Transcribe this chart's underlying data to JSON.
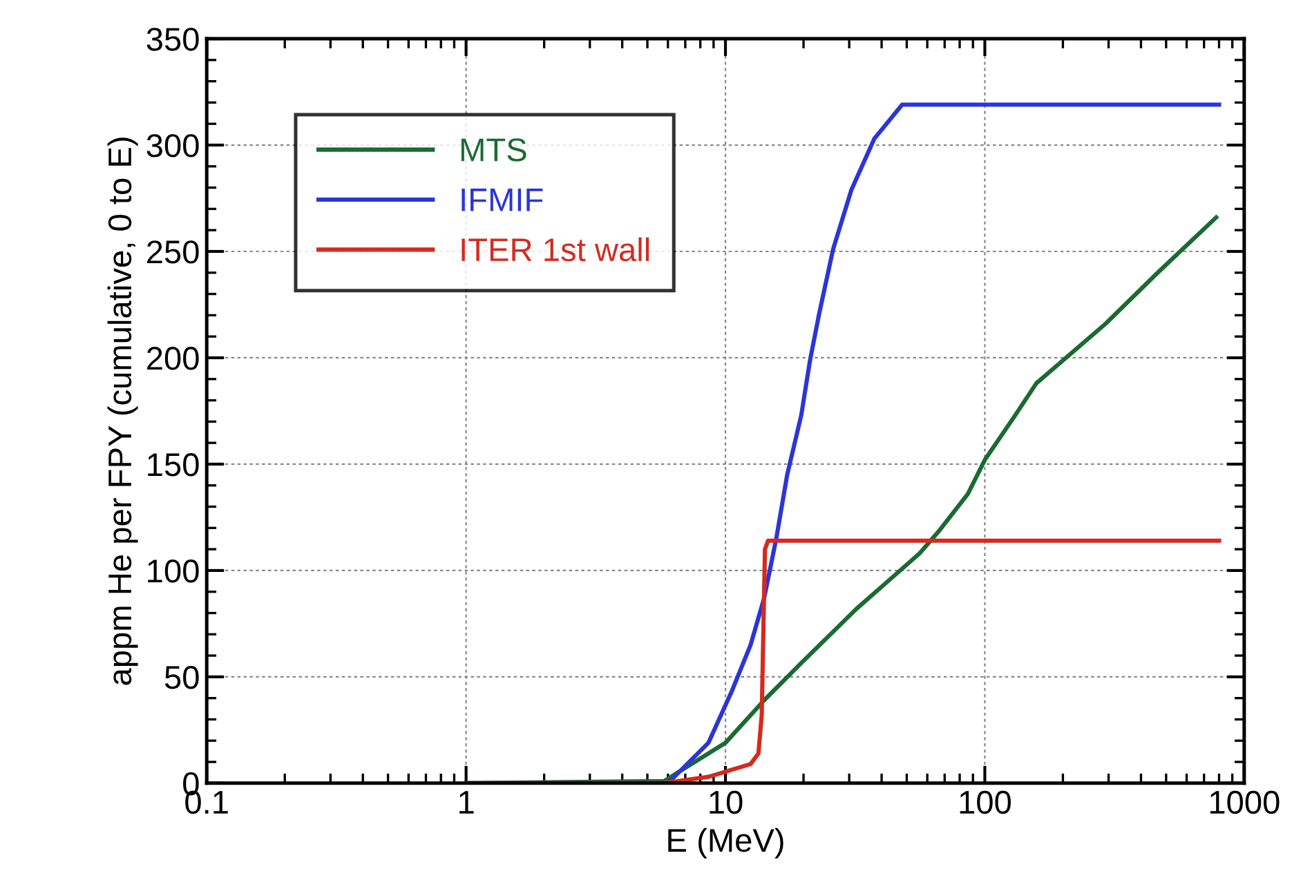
{
  "chart_data": {
    "type": "line",
    "xlabel": "E (MeV)",
    "ylabel": "appm He per FPY (cumulative, 0 to E)",
    "log": "x",
    "xlim": [
      0.1,
      1000
    ],
    "xticks": [
      0.1,
      1,
      10,
      100,
      1000
    ],
    "ylim": [
      0,
      350
    ],
    "yticks": [
      0,
      50,
      100,
      150,
      200,
      250,
      300,
      350
    ],
    "grid": true,
    "legend": "top left",
    "line_style": "solid",
    "marker": "none",
    "series": [
      {
        "name": "MTS",
        "color": "#1a6b30",
        "x": [
          1,
          5.8,
          10,
          14.1,
          19.6,
          32,
          56,
          67,
          86,
          100,
          131,
          158,
          292,
          464,
          780
        ],
        "values": [
          0,
          1,
          19,
          39,
          56.5,
          82,
          108,
          119,
          136,
          152,
          173,
          188,
          216,
          240,
          266
        ]
      },
      {
        "name": "IFMIF",
        "color": "#2b35d8",
        "x": [
          1,
          6,
          8.6,
          10.6,
          12.5,
          14.1,
          15.7,
          17.3,
          19.6,
          21.2,
          23,
          26,
          30.6,
          37.5,
          48,
          800
        ],
        "values": [
          0,
          0,
          19,
          43.5,
          65,
          87,
          115,
          145,
          173,
          199,
          221,
          251,
          279,
          303,
          319,
          319
        ]
      },
      {
        "name": "ITER 1st wall",
        "color": "#d42a1f",
        "x": [
          1,
          5.8,
          8.6,
          12.5,
          13.4,
          13.8,
          14.2,
          14.6,
          800
        ],
        "values": [
          0,
          0,
          3,
          9,
          14,
          32,
          110,
          114,
          114
        ]
      }
    ]
  }
}
